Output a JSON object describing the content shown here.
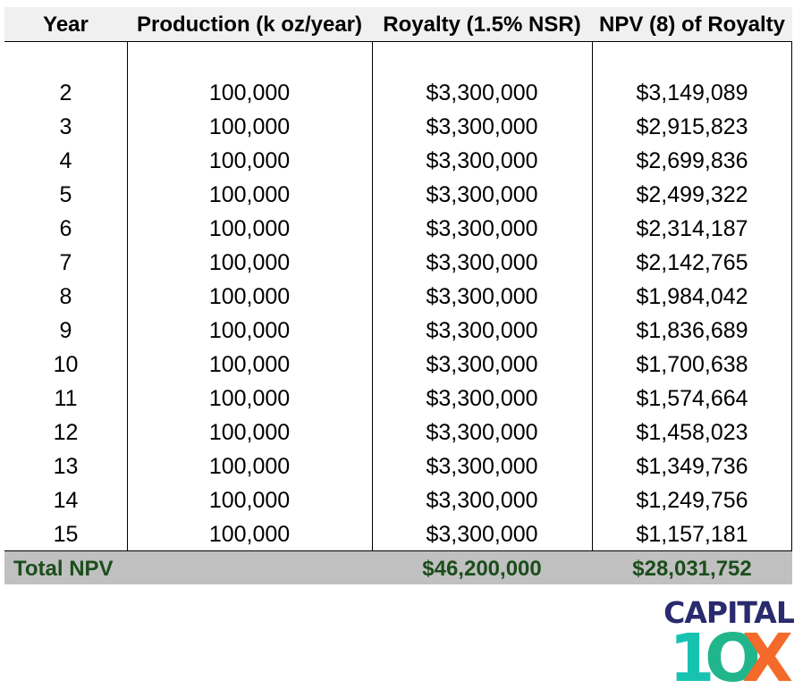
{
  "table": {
    "headers": [
      "Year",
      "Production (k oz/year)",
      "Royalty (1.5% NSR)",
      "NPV (8) of Royalty"
    ],
    "rows": [
      [
        "2",
        "100,000",
        "$3,300,000",
        "$3,149,089"
      ],
      [
        "3",
        "100,000",
        "$3,300,000",
        "$2,915,823"
      ],
      [
        "4",
        "100,000",
        "$3,300,000",
        "$2,699,836"
      ],
      [
        "5",
        "100,000",
        "$3,300,000",
        "$2,499,322"
      ],
      [
        "6",
        "100,000",
        "$3,300,000",
        "$2,314,187"
      ],
      [
        "7",
        "100,000",
        "$3,300,000",
        "$2,142,765"
      ],
      [
        "8",
        "100,000",
        "$3,300,000",
        "$1,984,042"
      ],
      [
        "9",
        "100,000",
        "$3,300,000",
        "$1,836,689"
      ],
      [
        "10",
        "100,000",
        "$3,300,000",
        "$1,700,638"
      ],
      [
        "11",
        "100,000",
        "$3,300,000",
        "$1,574,664"
      ],
      [
        "12",
        "100,000",
        "$3,300,000",
        "$1,458,023"
      ],
      [
        "13",
        "100,000",
        "$3,300,000",
        "$1,349,736"
      ],
      [
        "14",
        "100,000",
        "$3,300,000",
        "$1,249,756"
      ],
      [
        "15",
        "100,000",
        "$3,300,000",
        "$1,157,181"
      ]
    ],
    "total": {
      "label": "Total NPV",
      "royalty": "$46,200,000",
      "npv": "$28,031,752"
    }
  },
  "logo": {
    "top": "CAPITAL",
    "one": "1",
    "zero": "O",
    "x": "X"
  },
  "colors": {
    "header_bg": "#f0f0f0",
    "total_bg": "#c0c0c0",
    "total_text": "#1b4d1b",
    "logo_navy": "#2a2a6e",
    "logo_teal": "#17c3b0",
    "logo_green": "#21b58c",
    "logo_orange": "#f46a2a"
  }
}
